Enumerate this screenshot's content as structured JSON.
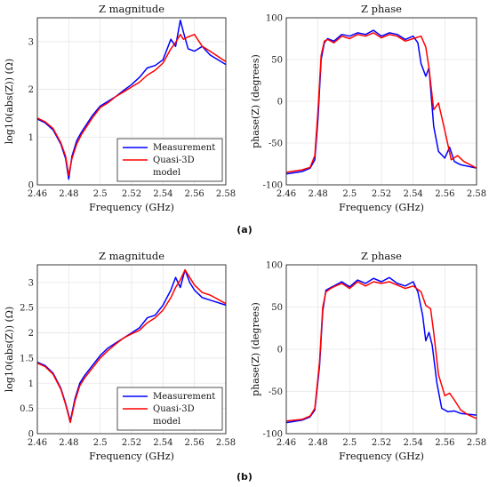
{
  "panel_labels": [
    "(a)",
    "(b)"
  ],
  "colors": {
    "measurement": "#0000ff",
    "model": "#ff0000",
    "grid": "#e6e6e6"
  },
  "chart_data": [
    {
      "type": "line",
      "panel": "(a)",
      "title": "Z magnitude",
      "xlabel": "Frequency (GHz)",
      "ylabel": "log10(abs(Z)) (Ω)",
      "xlim": [
        2.46,
        2.58
      ],
      "ylim": [
        0,
        3.5
      ],
      "xticks": [
        "2.46",
        "2.48",
        "2.5",
        "2.52",
        "2.54",
        "2.56",
        "2.58"
      ],
      "yticks": [
        "0",
        "1",
        "2",
        "3"
      ],
      "grid": true,
      "legend_position": "bottom-right",
      "legend": [
        "Measurement",
        "Quasi-3D",
        "model"
      ],
      "series": [
        {
          "name": "Measurement",
          "color": "#0000ff",
          "x": [
            2.46,
            2.465,
            2.47,
            2.475,
            2.478,
            2.48,
            2.482,
            2.485,
            2.488,
            2.49,
            2.495,
            2.5,
            2.505,
            2.51,
            2.515,
            2.52,
            2.525,
            2.53,
            2.535,
            2.54,
            2.545,
            2.548,
            2.551,
            2.553,
            2.556,
            2.56,
            2.565,
            2.57,
            2.58
          ],
          "y": [
            1.38,
            1.3,
            1.15,
            0.85,
            0.55,
            0.12,
            0.6,
            0.92,
            1.1,
            1.2,
            1.45,
            1.65,
            1.75,
            1.85,
            1.98,
            2.1,
            2.25,
            2.45,
            2.5,
            2.62,
            3.05,
            2.9,
            3.45,
            3.2,
            2.85,
            2.8,
            2.9,
            2.72,
            2.52
          ]
        },
        {
          "name": "Quasi-3D model",
          "color": "#ff0000",
          "x": [
            2.46,
            2.465,
            2.47,
            2.475,
            2.478,
            2.48,
            2.482,
            2.485,
            2.488,
            2.49,
            2.495,
            2.5,
            2.505,
            2.51,
            2.515,
            2.52,
            2.525,
            2.53,
            2.535,
            2.54,
            2.545,
            2.548,
            2.551,
            2.553,
            2.556,
            2.56,
            2.565,
            2.57,
            2.58
          ],
          "y": [
            1.4,
            1.32,
            1.18,
            0.88,
            0.6,
            0.2,
            0.55,
            0.85,
            1.05,
            1.15,
            1.4,
            1.62,
            1.72,
            1.85,
            1.95,
            2.05,
            2.15,
            2.3,
            2.4,
            2.55,
            2.85,
            2.98,
            3.15,
            3.05,
            3.1,
            3.15,
            2.9,
            2.8,
            2.58
          ]
        }
      ]
    },
    {
      "type": "line",
      "panel": "(a)",
      "title": "Z phase",
      "xlabel": "Frequency (GHz)",
      "ylabel": "phase(Z) (degrees)",
      "xlim": [
        2.46,
        2.58
      ],
      "ylim": [
        -100,
        100
      ],
      "xticks": [
        "2.46",
        "2.48",
        "2.5",
        "2.52",
        "2.54",
        "2.56",
        "2.58"
      ],
      "yticks": [
        "-100",
        "-50",
        "0",
        "50",
        "100"
      ],
      "grid": true,
      "series": [
        {
          "name": "Measurement",
          "color": "#0000ff",
          "x": [
            2.46,
            2.47,
            2.475,
            2.478,
            2.48,
            2.482,
            2.484,
            2.486,
            2.49,
            2.495,
            2.5,
            2.505,
            2.51,
            2.515,
            2.52,
            2.525,
            2.53,
            2.535,
            2.54,
            2.543,
            2.545,
            2.548,
            2.55,
            2.553,
            2.556,
            2.56,
            2.563,
            2.566,
            2.57,
            2.58
          ],
          "y": [
            -87,
            -84,
            -80,
            -70,
            -20,
            50,
            70,
            75,
            72,
            80,
            78,
            82,
            80,
            85,
            78,
            82,
            80,
            74,
            78,
            70,
            45,
            30,
            40,
            -30,
            -60,
            -68,
            -55,
            -72,
            -76,
            -80
          ]
        },
        {
          "name": "Quasi-3D model",
          "color": "#ff0000",
          "x": [
            2.46,
            2.47,
            2.475,
            2.478,
            2.48,
            2.482,
            2.484,
            2.486,
            2.49,
            2.495,
            2.5,
            2.505,
            2.51,
            2.515,
            2.52,
            2.525,
            2.53,
            2.535,
            2.54,
            2.545,
            2.548,
            2.55,
            2.553,
            2.556,
            2.56,
            2.564,
            2.568,
            2.572,
            2.58
          ],
          "y": [
            -85,
            -82,
            -79,
            -65,
            -10,
            55,
            72,
            74,
            70,
            78,
            75,
            80,
            78,
            82,
            76,
            80,
            78,
            72,
            75,
            78,
            65,
            40,
            -10,
            -2,
            -35,
            -70,
            -65,
            -72,
            -80
          ]
        }
      ]
    },
    {
      "type": "line",
      "panel": "(b)",
      "title": "Z magnitude",
      "xlabel": "Frequency (GHz)",
      "ylabel": "log10(abs(Z)) (Ω)",
      "xlim": [
        2.46,
        2.58
      ],
      "ylim": [
        0,
        3.35
      ],
      "xticks": [
        "2.46",
        "2.48",
        "2.5",
        "2.52",
        "2.54",
        "2.56",
        "2.58"
      ],
      "yticks": [
        "0",
        "0.5",
        "1",
        "1.5",
        "2",
        "2.5",
        "3"
      ],
      "grid": true,
      "legend_position": "bottom-right",
      "legend": [
        "Measurement",
        "Quasi-3D",
        "model"
      ],
      "series": [
        {
          "name": "Measurement",
          "color": "#0000ff",
          "x": [
            2.46,
            2.465,
            2.47,
            2.475,
            2.478,
            2.481,
            2.484,
            2.487,
            2.49,
            2.495,
            2.5,
            2.505,
            2.51,
            2.515,
            2.52,
            2.525,
            2.53,
            2.535,
            2.54,
            2.545,
            2.548,
            2.551,
            2.554,
            2.557,
            2.56,
            2.565,
            2.57,
            2.58
          ],
          "y": [
            1.42,
            1.35,
            1.2,
            0.9,
            0.6,
            0.25,
            0.7,
            1.0,
            1.15,
            1.35,
            1.55,
            1.7,
            1.8,
            1.9,
            2.0,
            2.1,
            2.3,
            2.35,
            2.55,
            2.85,
            3.1,
            2.9,
            3.25,
            3.0,
            2.85,
            2.7,
            2.65,
            2.55
          ]
        },
        {
          "name": "Quasi-3D model",
          "color": "#ff0000",
          "x": [
            2.46,
            2.465,
            2.47,
            2.475,
            2.478,
            2.481,
            2.484,
            2.487,
            2.49,
            2.495,
            2.5,
            2.505,
            2.51,
            2.515,
            2.52,
            2.525,
            2.53,
            2.535,
            2.54,
            2.545,
            2.548,
            2.551,
            2.554,
            2.557,
            2.56,
            2.565,
            2.57,
            2.58
          ],
          "y": [
            1.4,
            1.33,
            1.18,
            0.88,
            0.58,
            0.22,
            0.65,
            0.95,
            1.1,
            1.3,
            1.5,
            1.65,
            1.78,
            1.9,
            1.98,
            2.05,
            2.2,
            2.3,
            2.45,
            2.7,
            2.9,
            3.05,
            3.25,
            3.1,
            2.95,
            2.8,
            2.75,
            2.58
          ]
        }
      ]
    },
    {
      "type": "line",
      "panel": "(b)",
      "title": "Z phase",
      "xlabel": "Frequency (GHz)",
      "ylabel": "phase(Z) (degrees)",
      "xlim": [
        2.46,
        2.58
      ],
      "ylim": [
        -100,
        100
      ],
      "xticks": [
        "2.46",
        "2.48",
        "2.5",
        "2.52",
        "2.54",
        "2.56",
        "2.58"
      ],
      "yticks": [
        "-100",
        "-50",
        "0",
        "50",
        "100"
      ],
      "grid": true,
      "series": [
        {
          "name": "Measurement",
          "color": "#0000ff",
          "x": [
            2.46,
            2.47,
            2.475,
            2.478,
            2.481,
            2.483,
            2.485,
            2.488,
            2.49,
            2.495,
            2.5,
            2.505,
            2.51,
            2.515,
            2.52,
            2.525,
            2.53,
            2.535,
            2.54,
            2.543,
            2.546,
            2.548,
            2.55,
            2.552,
            2.555,
            2.558,
            2.562,
            2.566,
            2.57,
            2.58
          ],
          "y": [
            -87,
            -84,
            -80,
            -72,
            -20,
            45,
            70,
            73,
            75,
            80,
            74,
            82,
            78,
            84,
            80,
            85,
            78,
            75,
            80,
            68,
            40,
            10,
            20,
            5,
            -40,
            -70,
            -74,
            -73,
            -76,
            -78
          ]
        },
        {
          "name": "Quasi-3D model",
          "color": "#ff0000",
          "x": [
            2.46,
            2.47,
            2.475,
            2.478,
            2.481,
            2.483,
            2.485,
            2.488,
            2.49,
            2.495,
            2.5,
            2.505,
            2.51,
            2.515,
            2.52,
            2.525,
            2.53,
            2.535,
            2.54,
            2.545,
            2.548,
            2.551,
            2.553,
            2.556,
            2.56,
            2.563,
            2.566,
            2.57,
            2.575,
            2.58
          ],
          "y": [
            -85,
            -83,
            -79,
            -70,
            -15,
            50,
            68,
            72,
            74,
            78,
            72,
            80,
            75,
            80,
            78,
            80,
            76,
            72,
            75,
            68,
            52,
            48,
            20,
            -30,
            -55,
            -52,
            -60,
            -72,
            -78,
            -82
          ]
        }
      ]
    }
  ]
}
